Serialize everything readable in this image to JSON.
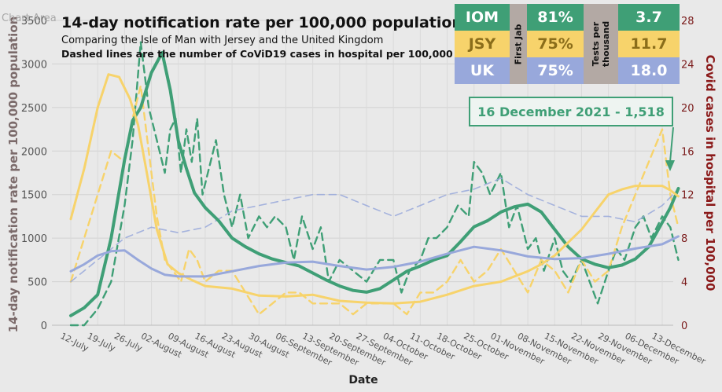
{
  "chart_area_label": "Chart Area",
  "title": "14-day notification rate per 100,000 population",
  "subtitle": "Comparing the Isle of Man with Jersey and the United Kingdom",
  "subtitle2": "Dashed lines are the number of CoViD19 cases in hospital per 100,000",
  "annotation": "16 December 2021 - 1,518",
  "colors": {
    "iom": "#3f9f76",
    "jsy": "#f7d36b",
    "uk": "#98a8db",
    "label_bg": "#b3a9a4"
  },
  "table": {
    "first_jab_label": "First Jab",
    "tests_label": "Tests per thousand",
    "rows": [
      {
        "name": "IOM",
        "first_jab": "81%",
        "tests": "3.7"
      },
      {
        "name": "JSY",
        "first_jab": "75%",
        "tests": "11.7"
      },
      {
        "name": "UK",
        "first_jab": "75%",
        "tests": "18.0"
      }
    ]
  },
  "chart_data": {
    "type": "line",
    "xlabel": "Date",
    "ylabel": "14-day notification rate per 100,000 population",
    "ylabel_right": "Covid cases in hospital per 100,000",
    "ylim": [
      0,
      3500
    ],
    "ylim_right": [
      0,
      28
    ],
    "yticks": [
      "0",
      "500",
      "1000",
      "1500",
      "2000",
      "2500",
      "3000",
      "3500"
    ],
    "yticks_right": [
      "0",
      "4",
      "8",
      "12",
      "16",
      "20",
      "24",
      "28"
    ],
    "grid": true,
    "categories": [
      "12-July",
      "19-July",
      "26-July",
      "02-August",
      "09-August",
      "16-August",
      "23-August",
      "30-August",
      "06-September",
      "13-September",
      "20-September",
      "27-September",
      "04-October",
      "11-October",
      "18-October",
      "25-October",
      "01-November",
      "08-November",
      "15-November",
      "22-November",
      "29-November",
      "06-December",
      "13-December"
    ],
    "series": [
      {
        "name": "IOM",
        "axis": "left",
        "style": "solid",
        "x": [
          0,
          0.5,
          1,
          1.5,
          2,
          2.3,
          2.6,
          3,
          3.4,
          3.7,
          4,
          4.3,
          4.6,
          5,
          5.5,
          6,
          6.5,
          7,
          7.5,
          8,
          8.5,
          9,
          9.5,
          10,
          10.5,
          11,
          11.5,
          12,
          12.5,
          13,
          13.5,
          14,
          14.5,
          15,
          15.5,
          16,
          16.5,
          17,
          17.5,
          18,
          18.5,
          19,
          19.5,
          20,
          20.5,
          21,
          21.5,
          22,
          22.3,
          22.6
        ],
        "values": [
          110,
          200,
          350,
          1000,
          1900,
          2350,
          2500,
          2900,
          3130,
          2700,
          2120,
          1800,
          1520,
          1350,
          1200,
          1000,
          900,
          820,
          760,
          720,
          680,
          600,
          520,
          450,
          400,
          380,
          420,
          520,
          620,
          680,
          750,
          800,
          960,
          1130,
          1200,
          1300,
          1360,
          1390,
          1300,
          1100,
          900,
          760,
          700,
          660,
          690,
          760,
          900,
          1180,
          1350,
          1570
        ]
      },
      {
        "name": "JSY",
        "axis": "left",
        "style": "solid",
        "x": [
          0,
          0.5,
          1,
          1.4,
          1.8,
          2.2,
          2.5,
          2.8,
          3.2,
          3.6,
          4,
          4.5,
          5,
          6,
          7,
          8,
          9,
          10,
          11,
          12,
          13,
          14,
          15,
          16,
          16.5,
          17,
          17.5,
          18,
          18.5,
          19,
          19.5,
          20,
          20.5,
          21,
          21.5,
          22,
          22.3,
          22.6
        ],
        "values": [
          1220,
          1800,
          2500,
          2880,
          2850,
          2600,
          2300,
          1800,
          1100,
          700,
          600,
          520,
          450,
          420,
          340,
          330,
          350,
          280,
          260,
          250,
          270,
          350,
          450,
          500,
          560,
          620,
          700,
          800,
          950,
          1100,
          1300,
          1500,
          1560,
          1600,
          1600,
          1600,
          1550,
          1480
        ]
      },
      {
        "name": "UK",
        "axis": "left",
        "style": "solid",
        "x": [
          0,
          0.5,
          1,
          1.5,
          2,
          2.5,
          3,
          3.5,
          4,
          5,
          6,
          7,
          8,
          9,
          10,
          11,
          12,
          13,
          14,
          15,
          16,
          17,
          18,
          19,
          20,
          21,
          22,
          22.6
        ],
        "values": [
          620,
          700,
          800,
          850,
          860,
          750,
          650,
          580,
          560,
          560,
          620,
          680,
          720,
          730,
          680,
          640,
          670,
          730,
          820,
          900,
          860,
          790,
          760,
          770,
          820,
          880,
          930,
          1020
        ]
      },
      {
        "name": "IOM hospital",
        "axis": "right",
        "style": "dashed",
        "x": [
          0,
          0.5,
          1,
          1.5,
          2,
          2.3,
          2.6,
          2.9,
          3.2,
          3.5,
          3.7,
          3.9,
          4.1,
          4.3,
          4.5,
          4.7,
          4.9,
          5.1,
          5.4,
          5.7,
          6,
          6.3,
          6.6,
          7,
          7.3,
          7.6,
          8,
          8.3,
          8.6,
          9,
          9.3,
          9.6,
          10,
          10.5,
          11,
          11.5,
          12,
          12.3,
          12.6,
          13,
          13.3,
          13.6,
          14,
          14.4,
          14.8,
          15,
          15.3,
          15.6,
          16,
          16.3,
          16.6,
          17,
          17.3,
          17.6,
          18,
          18.3,
          18.6,
          19,
          19.3,
          19.6,
          20,
          20.3,
          20.6,
          21,
          21.3,
          21.6,
          22,
          22.3,
          22.6
        ],
        "values": [
          0,
          0,
          1.5,
          4,
          11,
          17,
          26,
          20,
          17,
          14,
          18,
          19,
          14,
          18,
          15,
          19,
          12,
          14,
          17,
          12,
          9,
          12,
          8,
          10,
          9,
          10,
          9,
          6,
          10,
          7,
          9,
          4,
          6,
          5,
          4,
          6,
          6,
          3,
          5,
          6,
          8,
          8,
          9,
          11,
          10,
          15,
          14,
          12,
          14,
          9,
          11,
          7,
          8,
          5,
          8,
          5,
          4,
          6,
          4,
          2,
          5,
          7,
          6,
          9,
          10,
          8,
          10,
          9,
          6
        ]
      },
      {
        "name": "JSY hospital",
        "axis": "right",
        "style": "dashed",
        "x": [
          0,
          0.5,
          1,
          1.5,
          2,
          2.3,
          2.6,
          2.9,
          3.2,
          3.5,
          3.8,
          4.1,
          4.4,
          4.7,
          5,
          5.5,
          6,
          6.5,
          7,
          7.5,
          8,
          8.5,
          9,
          9.5,
          10,
          10.5,
          11,
          11.5,
          12,
          12.5,
          13,
          13.5,
          14,
          14.5,
          15,
          15.5,
          16,
          16.5,
          17,
          17.5,
          18,
          18.5,
          19,
          19.5,
          20,
          20.5,
          21,
          21.5,
          22,
          22.3,
          22.6
        ],
        "values": [
          4,
          8,
          12,
          16,
          15,
          19,
          22,
          16,
          10,
          6,
          5,
          4,
          7,
          6,
          4,
          5,
          5,
          3,
          1,
          2,
          3,
          3,
          2,
          2,
          2,
          1,
          2,
          2,
          2,
          1,
          3,
          3,
          4,
          6,
          4,
          5,
          7,
          5,
          3,
          6,
          5,
          3,
          6,
          4,
          5,
          9,
          12,
          15,
          18,
          12,
          9
        ]
      },
      {
        "name": "UK hospital",
        "axis": "right",
        "style": "dashed",
        "x": [
          0,
          1,
          2,
          3,
          4,
          5,
          6,
          7,
          8,
          9,
          10,
          11,
          12,
          13,
          14,
          15,
          16,
          17,
          18,
          19,
          20,
          21,
          22,
          22.6
        ],
        "values": [
          4,
          6,
          8,
          9,
          8.5,
          9,
          10.5,
          11,
          11.5,
          12,
          12,
          11,
          10,
          11,
          12,
          12.5,
          13.5,
          12,
          11,
          10,
          10,
          9.5,
          11,
          12.5
        ]
      }
    ]
  }
}
